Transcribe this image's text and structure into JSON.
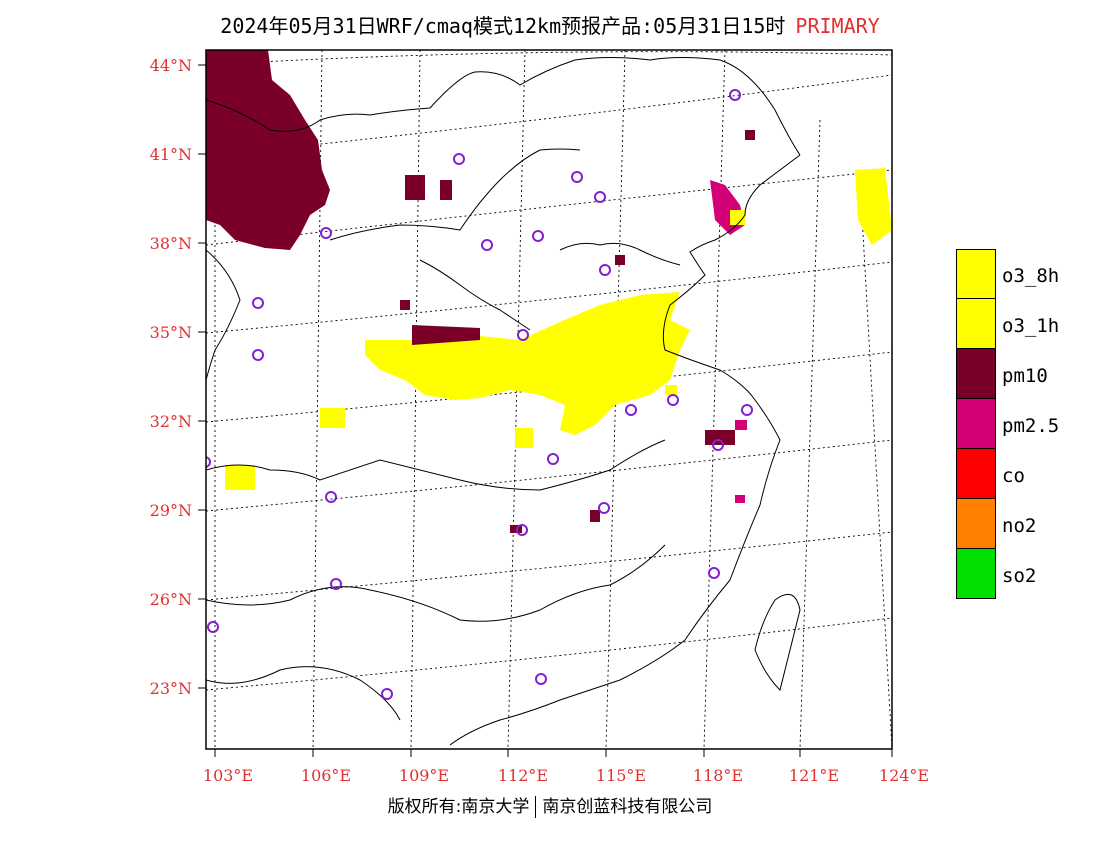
{
  "header": {
    "title": "2024年05月31日WRF/cmaq模式12km预报产品:05月31日15时",
    "tag": "PRIMARY",
    "tag_color": "#e03030"
  },
  "map": {
    "lat_labels": [
      "44°N",
      "41°N",
      "38°N",
      "35°N",
      "32°N",
      "29°N",
      "26°N",
      "23°N"
    ],
    "lon_labels": [
      "103°E",
      "106°E",
      "109°E",
      "112°E",
      "115°E",
      "118°E",
      "121°E",
      "124°E"
    ],
    "label_color": "#e03030",
    "station_marker_color": "#8020d0"
  },
  "legend": {
    "items": [
      {
        "label": "o3_8h",
        "color": "#ffff00"
      },
      {
        "label": "o3_1h",
        "color": "#ffff00"
      },
      {
        "label": "pm10",
        "color": "#7a0028"
      },
      {
        "label": "pm2.5",
        "color": "#d40078"
      },
      {
        "label": "co",
        "color": "#ff0000"
      },
      {
        "label": "no2",
        "color": "#ff8000"
      },
      {
        "label": "so2",
        "color": "#00e000"
      }
    ]
  },
  "footer": {
    "left": "版权所有:南京大学",
    "right": "南京创蓝科技有限公司"
  }
}
